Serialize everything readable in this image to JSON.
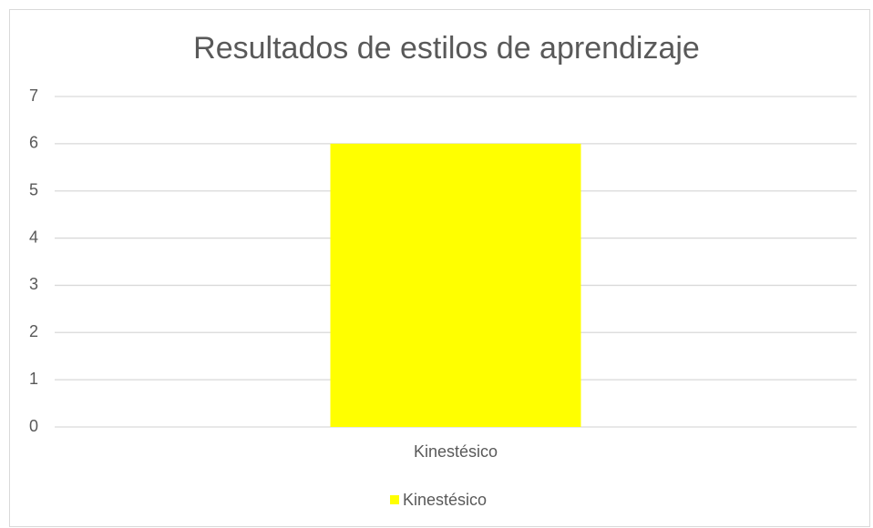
{
  "chart_data": {
    "type": "bar",
    "title": "Resultados de estilos de aprendizaje",
    "categories": [
      "Kinestésico"
    ],
    "series": [
      {
        "name": "Kinestésico",
        "color": "#ffff00",
        "values": [
          6
        ]
      }
    ],
    "ylim": [
      0,
      7
    ],
    "yticks": [
      0,
      1,
      2,
      3,
      4,
      5,
      6,
      7
    ],
    "grid": true,
    "legend": "bottom"
  }
}
